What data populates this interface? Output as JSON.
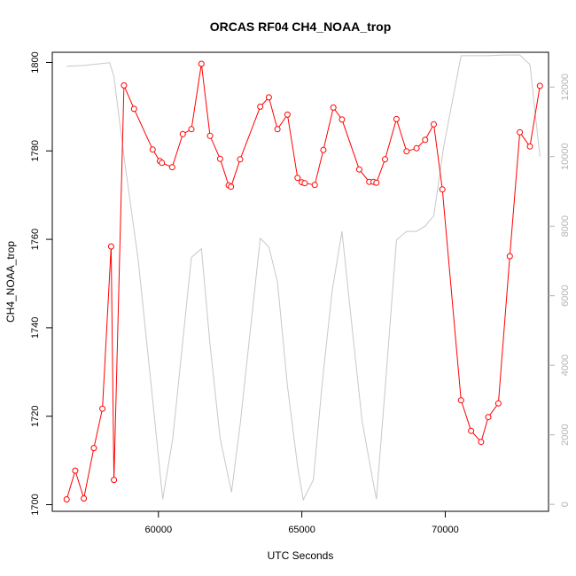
{
  "chart_data": {
    "type": "line",
    "title": "ORCAS RF04 CH4_NOAA_trop",
    "xlabel": "UTC Seconds",
    "ylabel": "CH4_NOAA_trop",
    "xlim": [
      56300,
      73600
    ],
    "ylim": [
      1698.5,
      1802.3
    ],
    "x_ticks": [
      60000,
      65000,
      70000
    ],
    "y_ticks": [
      1700,
      1720,
      1740,
      1760,
      1780,
      1800
    ],
    "y2lim": [
      -200,
      13000
    ],
    "y2_ticks": [
      0,
      2000,
      4000,
      6000,
      8000,
      10000,
      12000
    ],
    "grid": false,
    "colors": {
      "primary": "#ff0000",
      "secondary": "#c8c8c8",
      "secondary_axis": "#b4b4b4"
    },
    "series": [
      {
        "marker": "open-circle",
        "axis": "left",
        "x": [
          56800,
          57100,
          57400,
          57750,
          58050,
          58350,
          58450,
          58800,
          59150,
          59800,
          60050,
          60120,
          60480,
          60850,
          61150,
          61500,
          61800,
          62150,
          62450,
          62530,
          62850,
          63550,
          63850,
          64150,
          64500,
          64850,
          65000,
          65100,
          65450,
          65750,
          66100,
          66400,
          67000,
          67350,
          67500,
          67600,
          67900,
          68300,
          68650,
          69000,
          69300,
          69600,
          69900,
          70550,
          70900,
          71250,
          71500,
          71850,
          72250,
          72600,
          72950,
          73300
        ],
        "y": [
          1701.2,
          1707.7,
          1701.4,
          1712.8,
          1721.7,
          1758.4,
          1705.6,
          1794.8,
          1789.5,
          1780.3,
          1777.7,
          1777.3,
          1776.3,
          1783.8,
          1784.9,
          1799.7,
          1783.4,
          1778.2,
          1772.2,
          1771.9,
          1778.1,
          1790.0,
          1792.1,
          1784.9,
          1788.2,
          1773.9,
          1772.9,
          1772.7,
          1772.3,
          1780.2,
          1789.8,
          1787.1,
          1775.8,
          1773.0,
          1773.0,
          1772.8,
          1778.1,
          1787.2,
          1779.9,
          1780.6,
          1782.5,
          1786.0,
          1771.3,
          1723.6,
          1716.7,
          1714.2,
          1719.8,
          1722.9,
          1756.2,
          1784.2,
          1781.0,
          1794.7
        ]
      },
      {
        "marker": "none",
        "axis": "right",
        "x": [
          56800,
          57400,
          58300,
          58450,
          58800,
          59300,
          59800,
          60150,
          60500,
          61150,
          61500,
          61800,
          62150,
          62550,
          62850,
          63550,
          63850,
          64150,
          64500,
          64850,
          65050,
          65400,
          65700,
          66050,
          66400,
          66700,
          67100,
          67450,
          67600,
          67900,
          68300,
          68650,
          69000,
          69300,
          69600,
          69950,
          70550,
          70900,
          71500,
          72000,
          72600,
          72950,
          73300
        ],
        "y": [
          12600,
          12620,
          12700,
          12300,
          10000,
          7000,
          3000,
          150,
          1900,
          7100,
          7350,
          4600,
          1900,
          350,
          2300,
          7650,
          7400,
          6400,
          3400,
          1100,
          130,
          700,
          3400,
          6100,
          7850,
          5500,
          2400,
          800,
          150,
          3300,
          7600,
          7850,
          7850,
          8000,
          8300,
          10300,
          12900,
          12900,
          12900,
          12920,
          12920,
          12650,
          10000
        ]
      }
    ]
  }
}
